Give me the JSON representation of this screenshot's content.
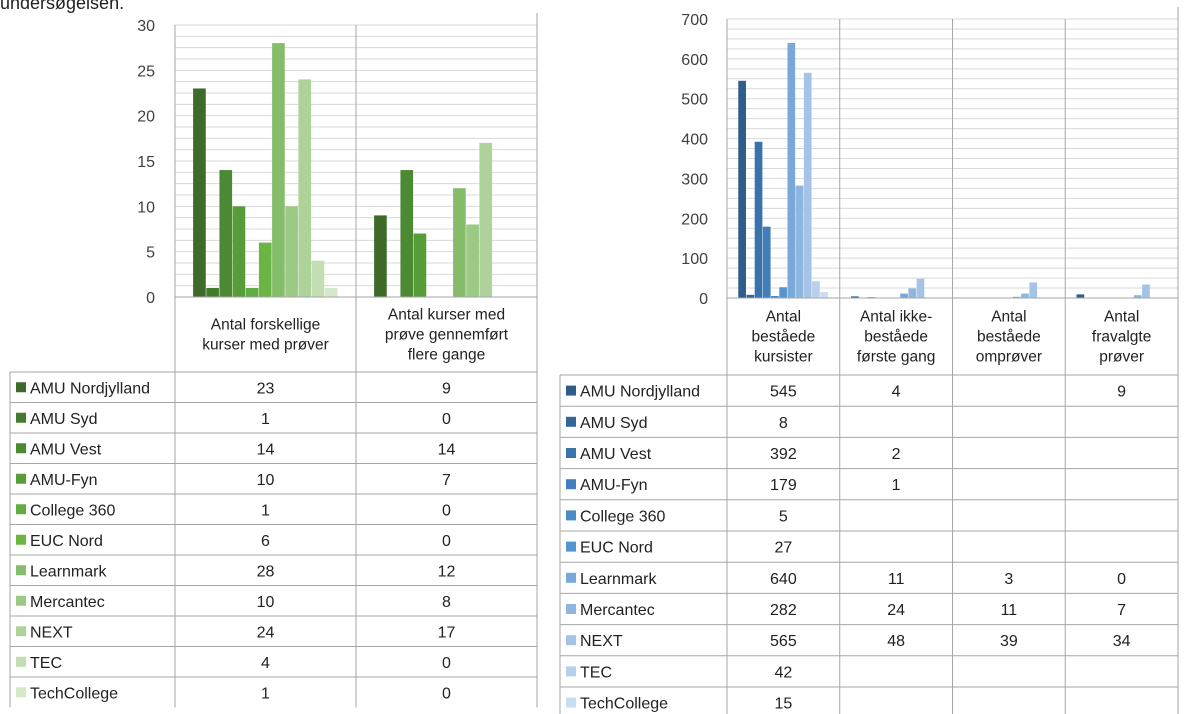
{
  "caption": "undersøgelsen.",
  "chart_data": [
    {
      "type": "bar",
      "ylim": [
        0,
        30
      ],
      "yticks": [
        0,
        5,
        10,
        15,
        20,
        25,
        30
      ],
      "grid": true,
      "legend": "table-left",
      "categories": [
        "Antal forskellige kurser med prøver",
        "Antal kurser med prøve gennemført flere gange"
      ],
      "category_lines": [
        [
          "Antal forskellige",
          "kurser med prøver"
        ],
        [
          "Antal kurser med",
          "prøve gennemført",
          "flere gange"
        ]
      ],
      "series": [
        {
          "name": "AMU Nordjylland",
          "values": [
            23,
            9
          ],
          "color": "#3f6b2a"
        },
        {
          "name": "AMU Syd",
          "values": [
            1,
            0
          ],
          "color": "#437a2c"
        },
        {
          "name": "AMU Vest",
          "values": [
            14,
            14
          ],
          "color": "#4b8a32"
        },
        {
          "name": "AMU-Fyn",
          "values": [
            10,
            7
          ],
          "color": "#569c39"
        },
        {
          "name": "College 360",
          "values": [
            1,
            0
          ],
          "color": "#62aa42"
        },
        {
          "name": "EUC Nord",
          "values": [
            6,
            0
          ],
          "color": "#6bb545"
        },
        {
          "name": "Learnmark",
          "values": [
            28,
            12
          ],
          "color": "#86bd6a"
        },
        {
          "name": "Mercantec",
          "values": [
            10,
            8
          ],
          "color": "#9cc984"
        },
        {
          "name": "NEXT",
          "values": [
            24,
            17
          ],
          "color": "#afd29b"
        },
        {
          "name": "TEC",
          "values": [
            4,
            0
          ],
          "color": "#c3deb2"
        },
        {
          "name": "TechCollege",
          "values": [
            1,
            0
          ],
          "color": "#d6e8ca"
        }
      ],
      "table_values": [
        [
          "23",
          "9"
        ],
        [
          "1",
          "0"
        ],
        [
          "14",
          "14"
        ],
        [
          "10",
          "7"
        ],
        [
          "1",
          "0"
        ],
        [
          "6",
          "0"
        ],
        [
          "28",
          "12"
        ],
        [
          "10",
          "8"
        ],
        [
          "24",
          "17"
        ],
        [
          "4",
          "0"
        ],
        [
          "1",
          "0"
        ]
      ]
    },
    {
      "type": "bar",
      "ylim": [
        0,
        700
      ],
      "yticks": [
        0,
        100,
        200,
        300,
        400,
        500,
        600,
        700
      ],
      "grid": true,
      "legend": "table-left",
      "categories": [
        "Antal beståede kursister",
        "Antal ikke-beståede første gang",
        "Antal beståede omprøver",
        "Antal fravalgte prøver"
      ],
      "category_lines": [
        [
          "Antal",
          "beståede",
          "kursister"
        ],
        [
          "Antal ikke-",
          "beståede",
          "første gang"
        ],
        [
          "Antal",
          "beståede",
          "omprøver"
        ],
        [
          "Antal",
          "fravalgte",
          "prøver"
        ]
      ],
      "series": [
        {
          "name": "AMU Nordjylland",
          "values": [
            545,
            4,
            null,
            9
          ],
          "color": "#2f5d8a"
        },
        {
          "name": "AMU Syd",
          "values": [
            8,
            null,
            null,
            null
          ],
          "color": "#336699"
        },
        {
          "name": "AMU Vest",
          "values": [
            392,
            2,
            null,
            null
          ],
          "color": "#3a73ab"
        },
        {
          "name": "AMU-Fyn",
          "values": [
            179,
            1,
            null,
            null
          ],
          "color": "#417fbc"
        },
        {
          "name": "College 360",
          "values": [
            5,
            null,
            null,
            null
          ],
          "color": "#4a8ac7"
        },
        {
          "name": "EUC Nord",
          "values": [
            27,
            null,
            null,
            null
          ],
          "color": "#5595cf"
        },
        {
          "name": "Learnmark",
          "values": [
            640,
            11,
            3,
            0
          ],
          "color": "#7aa8d8"
        },
        {
          "name": "Mercantec",
          "values": [
            282,
            24,
            11,
            7
          ],
          "color": "#8fb6df"
        },
        {
          "name": "NEXT",
          "values": [
            565,
            48,
            39,
            34
          ],
          "color": "#a4c3e6"
        },
        {
          "name": "TEC",
          "values": [
            42,
            null,
            null,
            null
          ],
          "color": "#b8d0ec"
        },
        {
          "name": "TechCollege",
          "values": [
            15,
            null,
            null,
            null
          ],
          "color": "#cbddf2"
        }
      ],
      "table_values": [
        [
          "545",
          "4",
          "",
          "9"
        ],
        [
          "8",
          "",
          "",
          ""
        ],
        [
          "392",
          "2",
          "",
          ""
        ],
        [
          "179",
          "1",
          "",
          ""
        ],
        [
          "5",
          "",
          "",
          ""
        ],
        [
          "27",
          "",
          "",
          ""
        ],
        [
          "640",
          "11",
          "3",
          "0"
        ],
        [
          "282",
          "24",
          "11",
          "7"
        ],
        [
          "565",
          "48",
          "39",
          "34"
        ],
        [
          "42",
          "",
          "",
          ""
        ],
        [
          "15",
          "",
          "",
          ""
        ]
      ]
    }
  ]
}
